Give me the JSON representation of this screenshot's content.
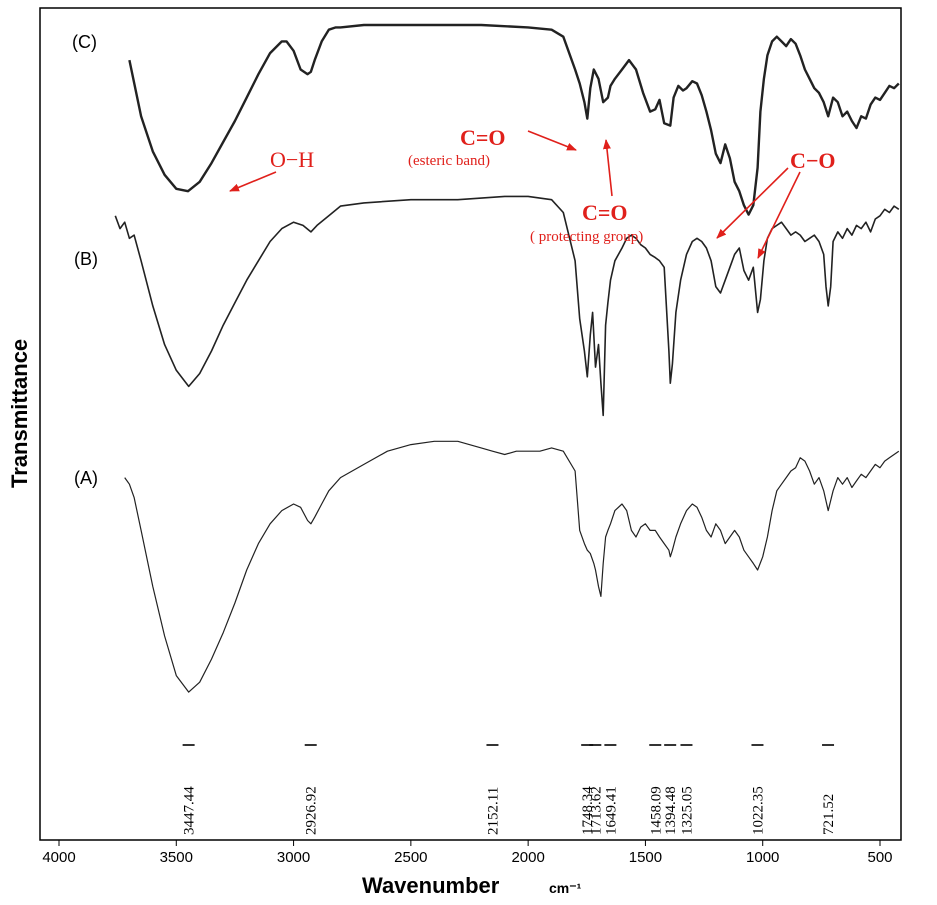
{
  "chart_data": {
    "type": "line",
    "title": "",
    "xlabel": "Wavenumber",
    "xlabel_unit": "cm⁻¹",
    "ylabel": "Transmittance",
    "xlim": [
      4000,
      400
    ],
    "x_reversed": true,
    "x_ticks": [
      4000,
      3500,
      3000,
      2500,
      2000,
      1500,
      1000,
      500
    ],
    "y_ticks_shown": false,
    "grid": false,
    "legend": "none",
    "series": [
      {
        "name": "(C)",
        "x": [
          3700,
          3650,
          3600,
          3550,
          3500,
          3450,
          3400,
          3350,
          3300,
          3250,
          3200,
          3150,
          3100,
          3050,
          3030,
          3000,
          2970,
          2940,
          2926,
          2910,
          2880,
          2850,
          2820,
          2800,
          2700,
          2500,
          2200,
          2000,
          1900,
          1850,
          1800,
          1780,
          1760,
          1748,
          1735,
          1720,
          1700,
          1680,
          1660,
          1649,
          1630,
          1600,
          1570,
          1540,
          1510,
          1480,
          1458,
          1440,
          1420,
          1394,
          1380,
          1360,
          1340,
          1325,
          1300,
          1280,
          1260,
          1240,
          1220,
          1200,
          1180,
          1160,
          1140,
          1120,
          1100,
          1080,
          1060,
          1040,
          1022,
          1010,
          995,
          980,
          960,
          940,
          920,
          900,
          880,
          860,
          840,
          820,
          800,
          780,
          760,
          740,
          721,
          700,
          680,
          660,
          640,
          620,
          600,
          580,
          560,
          540,
          520,
          500,
          480,
          460,
          440,
          420
        ],
        "y": [
          0.82,
          0.58,
          0.43,
          0.33,
          0.27,
          0.26,
          0.3,
          0.38,
          0.47,
          0.56,
          0.66,
          0.76,
          0.85,
          0.9,
          0.9,
          0.86,
          0.78,
          0.76,
          0.77,
          0.82,
          0.9,
          0.95,
          0.96,
          0.96,
          0.97,
          0.97,
          0.97,
          0.96,
          0.95,
          0.92,
          0.78,
          0.72,
          0.64,
          0.57,
          0.7,
          0.78,
          0.74,
          0.64,
          0.66,
          0.71,
          0.74,
          0.78,
          0.82,
          0.78,
          0.68,
          0.6,
          0.61,
          0.65,
          0.55,
          0.54,
          0.66,
          0.71,
          0.69,
          0.7,
          0.73,
          0.72,
          0.67,
          0.6,
          0.52,
          0.42,
          0.38,
          0.46,
          0.4,
          0.3,
          0.26,
          0.2,
          0.16,
          0.2,
          0.36,
          0.6,
          0.74,
          0.84,
          0.9,
          0.92,
          0.9,
          0.88,
          0.91,
          0.89,
          0.84,
          0.78,
          0.74,
          0.7,
          0.68,
          0.64,
          0.58,
          0.66,
          0.64,
          0.58,
          0.6,
          0.56,
          0.53,
          0.58,
          0.57,
          0.63,
          0.66,
          0.65,
          0.68,
          0.71,
          0.7,
          0.72
        ]
      },
      {
        "name": "(B)",
        "x": [
          3760,
          3740,
          3720,
          3700,
          3680,
          3650,
          3600,
          3550,
          3500,
          3447,
          3400,
          3350,
          3300,
          3250,
          3200,
          3150,
          3100,
          3050,
          3000,
          2960,
          2926,
          2900,
          2850,
          2800,
          2700,
          2500,
          2300,
          2100,
          2000,
          1900,
          1850,
          1800,
          1780,
          1760,
          1748,
          1735,
          1725,
          1713,
          1700,
          1690,
          1680,
          1670,
          1660,
          1649,
          1630,
          1600,
          1580,
          1560,
          1540,
          1520,
          1500,
          1480,
          1458,
          1440,
          1420,
          1400,
          1394,
          1385,
          1370,
          1350,
          1325,
          1300,
          1280,
          1260,
          1240,
          1220,
          1200,
          1180,
          1160,
          1140,
          1120,
          1100,
          1080,
          1060,
          1040,
          1022,
          1010,
          995,
          980,
          960,
          940,
          920,
          900,
          880,
          860,
          840,
          820,
          800,
          780,
          760,
          740,
          730,
          721,
          710,
          700,
          680,
          660,
          640,
          620,
          600,
          580,
          560,
          540,
          520,
          500,
          480,
          460,
          440,
          420
        ],
        "y": [
          0.92,
          0.88,
          0.9,
          0.85,
          0.86,
          0.78,
          0.64,
          0.52,
          0.44,
          0.39,
          0.43,
          0.5,
          0.58,
          0.65,
          0.72,
          0.78,
          0.84,
          0.88,
          0.9,
          0.89,
          0.87,
          0.89,
          0.92,
          0.95,
          0.96,
          0.97,
          0.97,
          0.98,
          0.98,
          0.97,
          0.93,
          0.78,
          0.6,
          0.5,
          0.42,
          0.55,
          0.62,
          0.45,
          0.52,
          0.4,
          0.3,
          0.58,
          0.65,
          0.72,
          0.78,
          0.82,
          0.85,
          0.86,
          0.85,
          0.83,
          0.82,
          0.8,
          0.79,
          0.78,
          0.76,
          0.5,
          0.4,
          0.46,
          0.62,
          0.72,
          0.8,
          0.84,
          0.85,
          0.84,
          0.82,
          0.78,
          0.7,
          0.68,
          0.72,
          0.76,
          0.8,
          0.82,
          0.75,
          0.72,
          0.76,
          0.62,
          0.66,
          0.78,
          0.85,
          0.88,
          0.89,
          0.9,
          0.88,
          0.86,
          0.87,
          0.86,
          0.84,
          0.85,
          0.86,
          0.84,
          0.8,
          0.7,
          0.64,
          0.7,
          0.84,
          0.87,
          0.85,
          0.88,
          0.86,
          0.89,
          0.88,
          0.9,
          0.87,
          0.91,
          0.92,
          0.94,
          0.93,
          0.95,
          0.94
        ]
      },
      {
        "name": "(A)",
        "x": [
          3720,
          3700,
          3680,
          3650,
          3600,
          3550,
          3500,
          3447,
          3400,
          3350,
          3300,
          3250,
          3200,
          3150,
          3100,
          3050,
          3000,
          2970,
          2940,
          2926,
          2910,
          2880,
          2850,
          2800,
          2700,
          2600,
          2500,
          2400,
          2300,
          2200,
          2152,
          2100,
          2050,
          2000,
          1950,
          1900,
          1850,
          1800,
          1780,
          1760,
          1748,
          1735,
          1720,
          1713,
          1700,
          1690,
          1680,
          1670,
          1660,
          1649,
          1630,
          1600,
          1580,
          1560,
          1540,
          1520,
          1500,
          1480,
          1458,
          1440,
          1420,
          1400,
          1394,
          1385,
          1370,
          1350,
          1325,
          1300,
          1280,
          1260,
          1240,
          1220,
          1200,
          1180,
          1160,
          1140,
          1120,
          1100,
          1080,
          1060,
          1040,
          1022,
          1000,
          980,
          960,
          940,
          920,
          900,
          880,
          860,
          840,
          820,
          800,
          780,
          760,
          740,
          721,
          700,
          680,
          660,
          640,
          620,
          600,
          580,
          560,
          540,
          520,
          500,
          480,
          460,
          440,
          420
        ],
        "y": [
          0.88,
          0.86,
          0.82,
          0.72,
          0.55,
          0.4,
          0.28,
          0.23,
          0.26,
          0.33,
          0.41,
          0.5,
          0.6,
          0.68,
          0.74,
          0.78,
          0.8,
          0.79,
          0.75,
          0.74,
          0.76,
          0.8,
          0.84,
          0.88,
          0.92,
          0.96,
          0.98,
          0.99,
          0.99,
          0.97,
          0.96,
          0.95,
          0.96,
          0.96,
          0.96,
          0.97,
          0.96,
          0.9,
          0.72,
          0.68,
          0.66,
          0.65,
          0.62,
          0.6,
          0.55,
          0.52,
          0.62,
          0.7,
          0.72,
          0.74,
          0.78,
          0.8,
          0.78,
          0.72,
          0.7,
          0.73,
          0.74,
          0.72,
          0.72,
          0.7,
          0.68,
          0.66,
          0.64,
          0.66,
          0.7,
          0.74,
          0.78,
          0.8,
          0.79,
          0.76,
          0.72,
          0.7,
          0.74,
          0.72,
          0.68,
          0.7,
          0.72,
          0.7,
          0.66,
          0.64,
          0.62,
          0.6,
          0.64,
          0.7,
          0.78,
          0.84,
          0.86,
          0.88,
          0.9,
          0.91,
          0.94,
          0.93,
          0.9,
          0.86,
          0.88,
          0.84,
          0.78,
          0.84,
          0.88,
          0.86,
          0.88,
          0.85,
          0.87,
          0.89,
          0.88,
          0.9,
          0.92,
          0.91,
          0.93,
          0.94,
          0.95,
          0.96
        ]
      }
    ],
    "peak_labels": [
      "3447.44",
      "2926.92",
      "2152.11",
      "1748.34",
      "1713.62",
      "1649.41",
      "1458.09",
      "1394.48",
      "1325.05",
      "1022.35",
      "721.52"
    ],
    "peak_positions": [
      3447.44,
      2926.92,
      2152.11,
      1748.34,
      1713.62,
      1649.41,
      1458.09,
      1394.48,
      1325.05,
      1022.35,
      721.52
    ],
    "annotations": {
      "oh": "O−H",
      "co_ester_main": "C=O",
      "co_ester_sub": "(esteric band)",
      "co_prot_main": "C=O",
      "co_prot_sub": "( protecting group)",
      "c_o": "C−O"
    },
    "annotation_color": "#e0201b",
    "line_color": "#222222"
  }
}
